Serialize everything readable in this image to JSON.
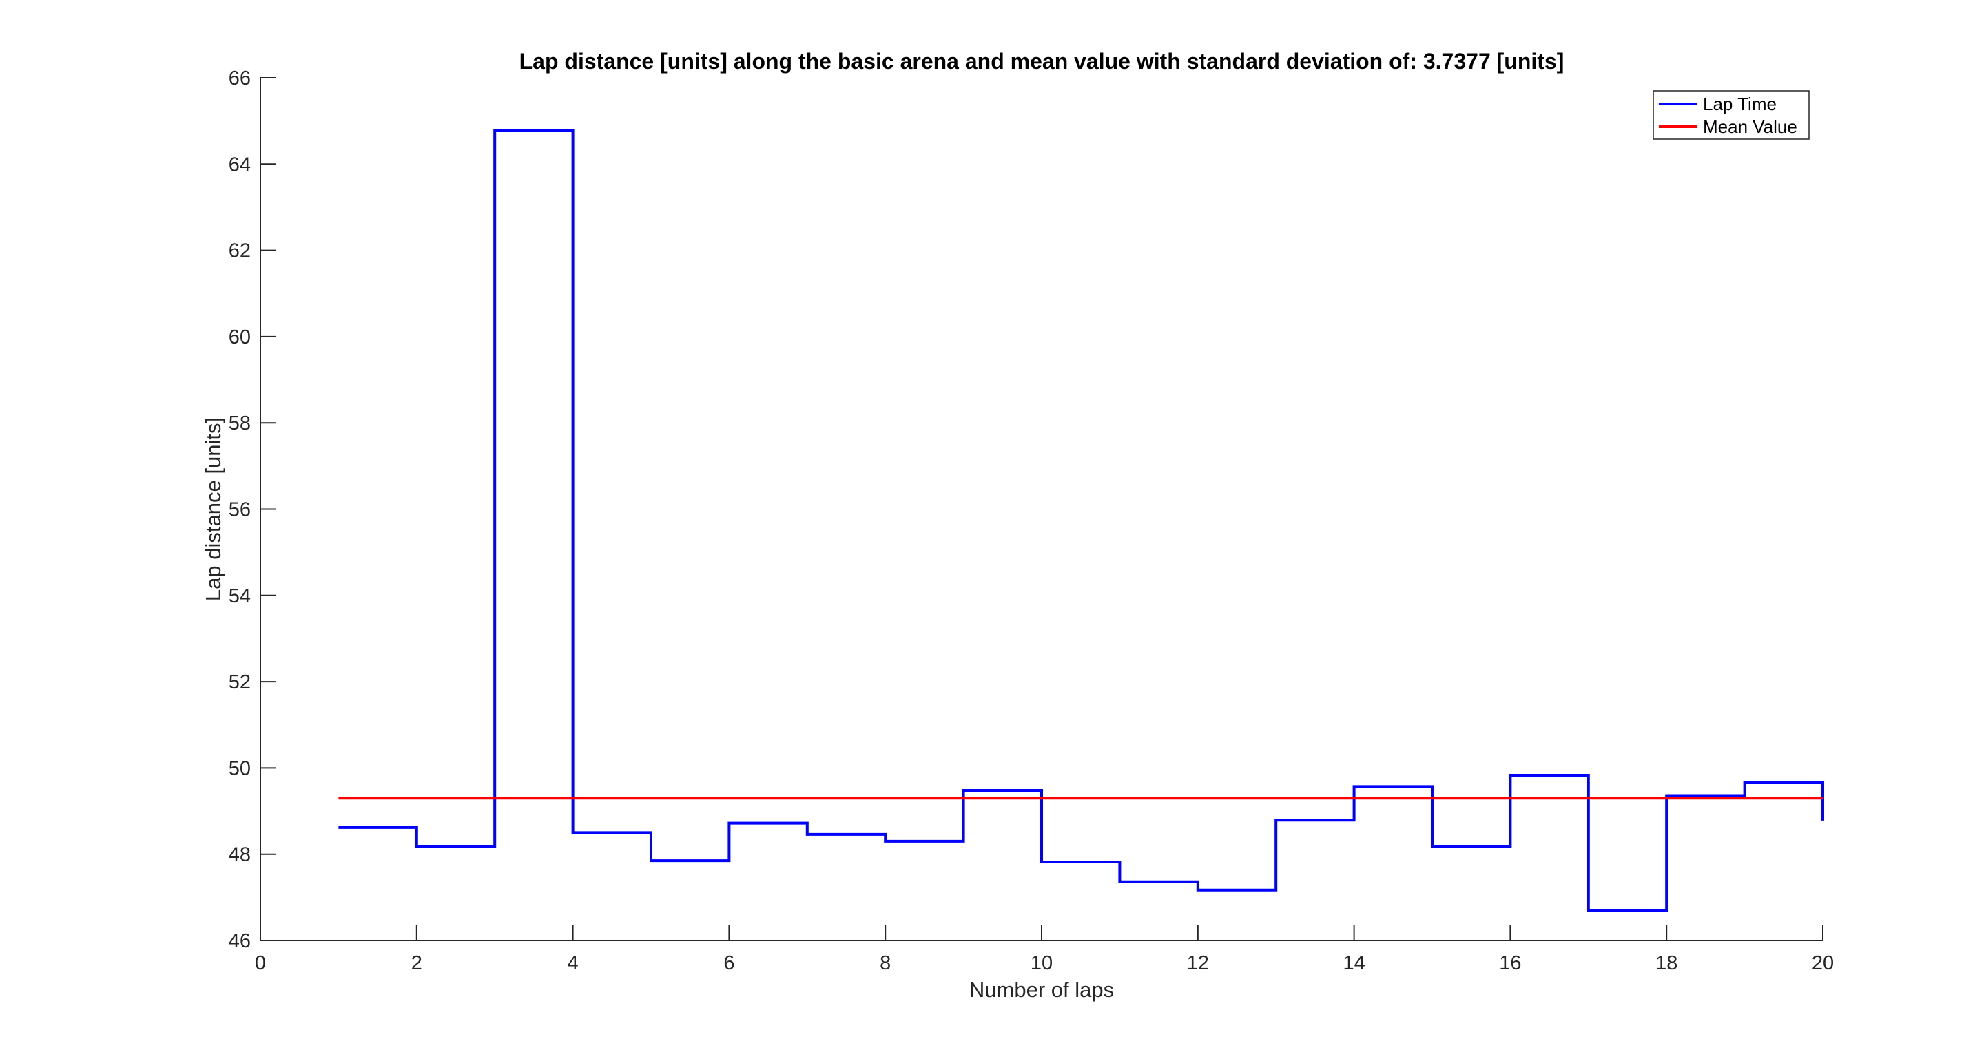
{
  "chart_data": {
    "type": "line",
    "title": "Lap distance [units] along the basic arena and mean value with standard deviation of: 3.7377 [units]",
    "xlabel": "Number of laps",
    "ylabel": "Lap distance [units]",
    "xlim": [
      0,
      20
    ],
    "ylim": [
      46,
      66
    ],
    "xticks": [
      "0",
      "2",
      "4",
      "6",
      "8",
      "10",
      "12",
      "14",
      "16",
      "18",
      "20"
    ],
    "yticks": [
      "46",
      "48",
      "50",
      "52",
      "54",
      "56",
      "58",
      "60",
      "62",
      "64",
      "66"
    ],
    "grid": false,
    "legend_position": "top-right",
    "series": [
      {
        "name": "Lap Time",
        "color": "#0000ff",
        "style": "stairs",
        "x": [
          1,
          2,
          3,
          4,
          5,
          6,
          7,
          8,
          9,
          10,
          11,
          12,
          13,
          14,
          15,
          16,
          17,
          18,
          19,
          20
        ],
        "values": [
          48.62,
          48.17,
          64.78,
          48.5,
          47.85,
          48.72,
          48.46,
          48.3,
          49.48,
          47.82,
          47.36,
          47.17,
          48.79,
          49.57,
          48.17,
          49.83,
          46.7,
          49.36,
          49.67,
          48.78
        ]
      },
      {
        "name": "Mean Value",
        "color": "#ff0000",
        "style": "line",
        "x": [
          1,
          20
        ],
        "values": [
          49.3,
          49.3
        ]
      }
    ]
  }
}
